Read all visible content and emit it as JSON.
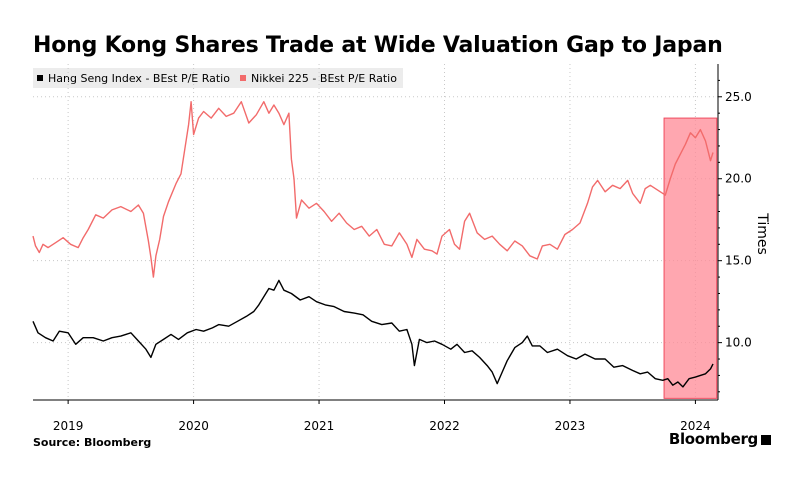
{
  "title": "Hong Kong Shares Trade at Wide Valuation Gap to Japan",
  "source": "Source: Bloomberg",
  "brand": "Bloomberg",
  "colors": {
    "hang_seng": "#000000",
    "nikkei": "#f26b6b",
    "highlight": "#ff8a96",
    "highlight_edge": "#f04a5e",
    "grid": "#c8c8c8"
  },
  "chart_data": {
    "type": "line",
    "title": "Hong Kong Shares Trade at Wide Valuation Gap to Japan",
    "ylabel": "Times",
    "xlabel": "",
    "y_axis_side": "right",
    "ylim": [
      6.5,
      27
    ],
    "yticks": [
      10.0,
      15.0,
      20.0,
      25.0
    ],
    "ytick_labels": [
      "10.0",
      "15.0",
      "20.0",
      "25.0"
    ],
    "xlim": [
      2018.72,
      2024.18
    ],
    "xticks": [
      2019,
      2020,
      2021,
      2022,
      2023,
      2024
    ],
    "xtick_labels": [
      "2019",
      "2020",
      "2021",
      "2022",
      "2023",
      "2024"
    ],
    "grid": true,
    "legend_position": "top-left",
    "highlight": {
      "x_start": 2023.75,
      "x_end": 2024.17,
      "y_start": 6.6,
      "y_end": 23.7
    },
    "series": [
      {
        "name": "Hang Seng Index - BEst P/E Ratio",
        "color": "#000000",
        "points": [
          [
            2018.72,
            11.3
          ],
          [
            2018.76,
            10.6
          ],
          [
            2018.82,
            10.3
          ],
          [
            2018.88,
            10.1
          ],
          [
            2018.93,
            10.7
          ],
          [
            2019.0,
            10.6
          ],
          [
            2019.06,
            9.9
          ],
          [
            2019.12,
            10.3
          ],
          [
            2019.2,
            10.3
          ],
          [
            2019.28,
            10.1
          ],
          [
            2019.35,
            10.3
          ],
          [
            2019.42,
            10.4
          ],
          [
            2019.5,
            10.6
          ],
          [
            2019.56,
            10.1
          ],
          [
            2019.62,
            9.6
          ],
          [
            2019.66,
            9.1
          ],
          [
            2019.7,
            9.9
          ],
          [
            2019.76,
            10.2
          ],
          [
            2019.82,
            10.5
          ],
          [
            2019.88,
            10.2
          ],
          [
            2019.95,
            10.6
          ],
          [
            2020.02,
            10.8
          ],
          [
            2020.08,
            10.7
          ],
          [
            2020.15,
            10.9
          ],
          [
            2020.2,
            11.1
          ],
          [
            2020.28,
            11.0
          ],
          [
            2020.35,
            11.3
          ],
          [
            2020.42,
            11.6
          ],
          [
            2020.48,
            11.9
          ],
          [
            2020.52,
            12.3
          ],
          [
            2020.56,
            12.8
          ],
          [
            2020.6,
            13.3
          ],
          [
            2020.64,
            13.2
          ],
          [
            2020.68,
            13.8
          ],
          [
            2020.72,
            13.2
          ],
          [
            2020.78,
            13.0
          ],
          [
            2020.85,
            12.6
          ],
          [
            2020.92,
            12.8
          ],
          [
            2020.98,
            12.5
          ],
          [
            2021.05,
            12.3
          ],
          [
            2021.12,
            12.2
          ],
          [
            2021.2,
            11.9
          ],
          [
            2021.28,
            11.8
          ],
          [
            2021.35,
            11.7
          ],
          [
            2021.42,
            11.3
          ],
          [
            2021.5,
            11.1
          ],
          [
            2021.58,
            11.2
          ],
          [
            2021.64,
            10.7
          ],
          [
            2021.7,
            10.8
          ],
          [
            2021.74,
            9.9
          ],
          [
            2021.76,
            8.6
          ],
          [
            2021.8,
            10.2
          ],
          [
            2021.86,
            10.0
          ],
          [
            2021.92,
            10.1
          ],
          [
            2021.98,
            9.9
          ],
          [
            2022.05,
            9.6
          ],
          [
            2022.1,
            9.9
          ],
          [
            2022.16,
            9.4
          ],
          [
            2022.22,
            9.5
          ],
          [
            2022.28,
            9.1
          ],
          [
            2022.34,
            8.6
          ],
          [
            2022.38,
            8.2
          ],
          [
            2022.42,
            7.5
          ],
          [
            2022.46,
            8.2
          ],
          [
            2022.5,
            8.9
          ],
          [
            2022.56,
            9.7
          ],
          [
            2022.62,
            10.0
          ],
          [
            2022.66,
            10.4
          ],
          [
            2022.7,
            9.8
          ],
          [
            2022.76,
            9.8
          ],
          [
            2022.82,
            9.4
          ],
          [
            2022.9,
            9.6
          ],
          [
            2022.98,
            9.2
          ],
          [
            2023.05,
            9.0
          ],
          [
            2023.12,
            9.3
          ],
          [
            2023.2,
            9.0
          ],
          [
            2023.28,
            9.0
          ],
          [
            2023.35,
            8.5
          ],
          [
            2023.42,
            8.6
          ],
          [
            2023.5,
            8.3
          ],
          [
            2023.56,
            8.1
          ],
          [
            2023.62,
            8.2
          ],
          [
            2023.68,
            7.8
          ],
          [
            2023.74,
            7.7
          ],
          [
            2023.78,
            7.8
          ],
          [
            2023.82,
            7.4
          ],
          [
            2023.86,
            7.6
          ],
          [
            2023.9,
            7.3
          ],
          [
            2023.95,
            7.8
          ],
          [
            2024.0,
            7.9
          ],
          [
            2024.04,
            8.0
          ],
          [
            2024.08,
            8.1
          ],
          [
            2024.12,
            8.4
          ],
          [
            2024.14,
            8.7
          ]
        ]
      },
      {
        "name": "Nikkei 225 - BEst P/E Ratio",
        "color": "#f26b6b",
        "points": [
          [
            2018.72,
            16.5
          ],
          [
            2018.74,
            15.9
          ],
          [
            2018.77,
            15.5
          ],
          [
            2018.8,
            16.0
          ],
          [
            2018.84,
            15.8
          ],
          [
            2018.9,
            16.1
          ],
          [
            2018.96,
            16.4
          ],
          [
            2019.02,
            16.0
          ],
          [
            2019.08,
            15.8
          ],
          [
            2019.12,
            16.4
          ],
          [
            2019.16,
            16.9
          ],
          [
            2019.22,
            17.8
          ],
          [
            2019.28,
            17.6
          ],
          [
            2019.35,
            18.1
          ],
          [
            2019.42,
            18.3
          ],
          [
            2019.5,
            18.0
          ],
          [
            2019.56,
            18.4
          ],
          [
            2019.6,
            17.9
          ],
          [
            2019.64,
            16.2
          ],
          [
            2019.66,
            15.2
          ],
          [
            2019.68,
            14.0
          ],
          [
            2019.7,
            15.3
          ],
          [
            2019.73,
            16.3
          ],
          [
            2019.76,
            17.7
          ],
          [
            2019.8,
            18.6
          ],
          [
            2019.86,
            19.7
          ],
          [
            2019.9,
            20.3
          ],
          [
            2019.93,
            21.8
          ],
          [
            2019.96,
            23.3
          ],
          [
            2019.98,
            24.7
          ],
          [
            2020.0,
            22.7
          ],
          [
            2020.04,
            23.7
          ],
          [
            2020.08,
            24.1
          ],
          [
            2020.14,
            23.7
          ],
          [
            2020.2,
            24.3
          ],
          [
            2020.26,
            23.8
          ],
          [
            2020.32,
            24.0
          ],
          [
            2020.38,
            24.7
          ],
          [
            2020.44,
            23.4
          ],
          [
            2020.5,
            23.9
          ],
          [
            2020.56,
            24.7
          ],
          [
            2020.6,
            24.0
          ],
          [
            2020.64,
            24.5
          ],
          [
            2020.68,
            24.0
          ],
          [
            2020.72,
            23.3
          ],
          [
            2020.76,
            24.0
          ],
          [
            2020.78,
            21.2
          ],
          [
            2020.8,
            20.0
          ],
          [
            2020.82,
            17.6
          ],
          [
            2020.86,
            18.7
          ],
          [
            2020.92,
            18.2
          ],
          [
            2020.98,
            18.5
          ],
          [
            2021.04,
            18.0
          ],
          [
            2021.1,
            17.4
          ],
          [
            2021.16,
            17.9
          ],
          [
            2021.22,
            17.3
          ],
          [
            2021.28,
            16.9
          ],
          [
            2021.34,
            17.1
          ],
          [
            2021.4,
            16.5
          ],
          [
            2021.46,
            16.9
          ],
          [
            2021.52,
            16.0
          ],
          [
            2021.58,
            15.9
          ],
          [
            2021.64,
            16.7
          ],
          [
            2021.7,
            16.0
          ],
          [
            2021.74,
            15.2
          ],
          [
            2021.78,
            16.3
          ],
          [
            2021.84,
            15.7
          ],
          [
            2021.9,
            15.6
          ],
          [
            2021.94,
            15.4
          ],
          [
            2021.98,
            16.5
          ],
          [
            2022.04,
            16.9
          ],
          [
            2022.08,
            16.0
          ],
          [
            2022.12,
            15.7
          ],
          [
            2022.16,
            17.4
          ],
          [
            2022.2,
            17.9
          ],
          [
            2022.26,
            16.7
          ],
          [
            2022.32,
            16.3
          ],
          [
            2022.38,
            16.5
          ],
          [
            2022.44,
            16.0
          ],
          [
            2022.5,
            15.6
          ],
          [
            2022.56,
            16.2
          ],
          [
            2022.62,
            15.9
          ],
          [
            2022.68,
            15.3
          ],
          [
            2022.74,
            15.1
          ],
          [
            2022.78,
            15.9
          ],
          [
            2022.84,
            16.0
          ],
          [
            2022.9,
            15.7
          ],
          [
            2022.96,
            16.6
          ],
          [
            2023.02,
            16.9
          ],
          [
            2023.08,
            17.3
          ],
          [
            2023.14,
            18.5
          ],
          [
            2023.18,
            19.5
          ],
          [
            2023.22,
            19.9
          ],
          [
            2023.28,
            19.2
          ],
          [
            2023.34,
            19.6
          ],
          [
            2023.4,
            19.4
          ],
          [
            2023.46,
            19.9
          ],
          [
            2023.5,
            19.1
          ],
          [
            2023.56,
            18.5
          ],
          [
            2023.6,
            19.4
          ],
          [
            2023.64,
            19.6
          ],
          [
            2023.7,
            19.3
          ],
          [
            2023.76,
            19.0
          ],
          [
            2023.8,
            20.0
          ],
          [
            2023.84,
            20.9
          ],
          [
            2023.88,
            21.5
          ],
          [
            2023.92,
            22.1
          ],
          [
            2023.96,
            22.8
          ],
          [
            2024.0,
            22.5
          ],
          [
            2024.04,
            23.0
          ],
          [
            2024.08,
            22.3
          ],
          [
            2024.12,
            21.1
          ],
          [
            2024.14,
            21.6
          ]
        ]
      }
    ]
  }
}
